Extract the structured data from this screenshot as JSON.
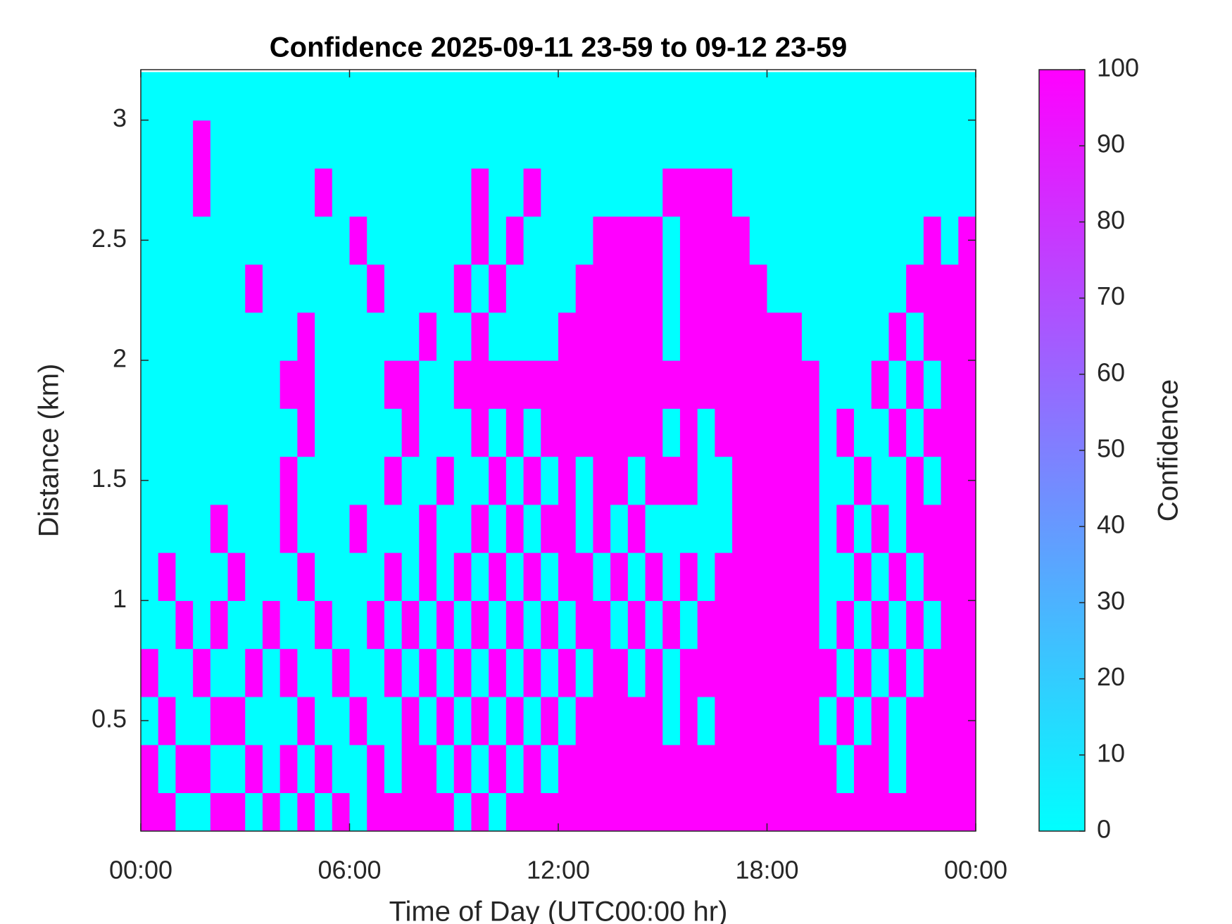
{
  "chart_data": {
    "type": "heatmap",
    "title": "Confidence 2025-09-11 23-59 to 09-12 23-59",
    "xlabel": "Time of Day (UTC00:00 hr)",
    "ylabel": "Distance (km)",
    "colorbar_label": "Confidence",
    "x": [
      0.25,
      0.75,
      1.25,
      1.75,
      2.25,
      2.75,
      3.25,
      3.75,
      4.25,
      4.75,
      5.25,
      5.75,
      6.25,
      6.75,
      7.25,
      7.75,
      8.25,
      8.75,
      9.25,
      9.75,
      10.25,
      10.75,
      11.25,
      11.75,
      12.25,
      12.75,
      13.25,
      13.75,
      14.25,
      14.75,
      15.25,
      15.75,
      16.25,
      16.75,
      17.25,
      17.75,
      18.25,
      18.75,
      19.25,
      19.75,
      20.25,
      20.75,
      21.25,
      21.75,
      22.25,
      22.75,
      23.25,
      23.75
    ],
    "y": [
      0.1,
      0.3,
      0.5,
      0.7,
      0.9,
      1.1,
      1.3,
      1.5,
      1.7,
      1.9,
      2.1,
      2.3,
      2.5,
      2.7,
      2.9,
      3.1
    ],
    "z": [
      [
        100,
        100,
        0,
        0,
        100,
        100,
        0,
        100,
        0,
        100,
        0,
        100,
        0,
        100,
        100,
        100,
        100,
        100,
        0,
        100,
        0,
        100,
        100,
        100,
        100,
        100,
        100,
        100,
        100,
        100,
        100,
        100,
        100,
        100,
        100,
        100,
        100,
        100,
        100,
        100,
        100,
        100,
        100,
        100,
        100,
        100,
        100,
        100
      ],
      [
        100,
        0,
        100,
        100,
        0,
        0,
        100,
        0,
        100,
        0,
        100,
        0,
        0,
        100,
        0,
        100,
        100,
        0,
        100,
        0,
        100,
        0,
        100,
        0,
        100,
        100,
        100,
        100,
        100,
        100,
        100,
        100,
        100,
        100,
        100,
        100,
        100,
        100,
        100,
        100,
        0,
        100,
        100,
        0,
        100,
        100,
        100,
        100
      ],
      [
        0,
        100,
        0,
        0,
        100,
        100,
        0,
        0,
        0,
        100,
        0,
        0,
        100,
        0,
        0,
        100,
        0,
        100,
        0,
        100,
        0,
        100,
        0,
        100,
        0,
        100,
        100,
        100,
        100,
        100,
        0,
        100,
        0,
        100,
        100,
        100,
        100,
        100,
        100,
        0,
        100,
        0,
        100,
        0,
        100,
        100,
        100,
        100
      ],
      [
        100,
        0,
        0,
        100,
        0,
        0,
        100,
        0,
        100,
        0,
        0,
        100,
        0,
        0,
        100,
        0,
        100,
        0,
        100,
        0,
        100,
        0,
        100,
        0,
        100,
        0,
        100,
        100,
        0,
        100,
        0,
        100,
        100,
        100,
        100,
        100,
        100,
        100,
        100,
        100,
        0,
        100,
        0,
        100,
        0,
        100,
        100,
        100
      ],
      [
        0,
        0,
        100,
        0,
        100,
        0,
        0,
        100,
        0,
        0,
        100,
        0,
        0,
        100,
        0,
        100,
        0,
        100,
        0,
        100,
        0,
        100,
        0,
        100,
        0,
        100,
        100,
        0,
        100,
        0,
        100,
        0,
        100,
        100,
        100,
        100,
        100,
        100,
        100,
        0,
        100,
        0,
        100,
        0,
        100,
        0,
        100,
        100
      ],
      [
        0,
        100,
        0,
        0,
        0,
        100,
        0,
        0,
        0,
        100,
        0,
        0,
        0,
        0,
        100,
        0,
        100,
        0,
        100,
        0,
        100,
        0,
        100,
        0,
        100,
        100,
        0,
        100,
        0,
        100,
        0,
        100,
        0,
        100,
        100,
        100,
        100,
        100,
        100,
        0,
        0,
        100,
        0,
        100,
        0,
        100,
        100,
        100
      ],
      [
        0,
        0,
        0,
        0,
        100,
        0,
        0,
        0,
        100,
        0,
        0,
        0,
        100,
        0,
        0,
        0,
        100,
        0,
        0,
        100,
        0,
        100,
        0,
        100,
        100,
        0,
        100,
        0,
        100,
        0,
        0,
        0,
        0,
        0,
        100,
        100,
        100,
        100,
        100,
        0,
        100,
        0,
        100,
        0,
        100,
        100,
        100,
        100
      ],
      [
        0,
        0,
        0,
        0,
        0,
        0,
        0,
        0,
        100,
        0,
        0,
        0,
        0,
        0,
        100,
        0,
        0,
        100,
        0,
        0,
        100,
        0,
        100,
        0,
        100,
        0,
        100,
        100,
        0,
        100,
        100,
        100,
        0,
        0,
        100,
        100,
        100,
        100,
        100,
        0,
        0,
        100,
        0,
        0,
        100,
        0,
        100,
        100
      ],
      [
        0,
        0,
        0,
        0,
        0,
        0,
        0,
        0,
        0,
        100,
        0,
        0,
        0,
        0,
        0,
        100,
        0,
        0,
        0,
        100,
        0,
        100,
        0,
        100,
        100,
        100,
        100,
        100,
        100,
        100,
        0,
        100,
        0,
        100,
        100,
        100,
        100,
        100,
        100,
        0,
        100,
        0,
        0,
        100,
        0,
        100,
        100,
        100
      ],
      [
        0,
        0,
        0,
        0,
        0,
        0,
        0,
        0,
        100,
        100,
        0,
        0,
        0,
        0,
        100,
        100,
        0,
        0,
        100,
        100,
        100,
        100,
        100,
        100,
        100,
        100,
        100,
        100,
        100,
        100,
        100,
        100,
        100,
        100,
        100,
        100,
        100,
        100,
        100,
        0,
        0,
        0,
        100,
        0,
        100,
        0,
        100,
        100
      ],
      [
        0,
        0,
        0,
        0,
        0,
        0,
        0,
        0,
        0,
        100,
        0,
        0,
        0,
        0,
        0,
        0,
        100,
        0,
        0,
        100,
        0,
        0,
        0,
        0,
        100,
        100,
        100,
        100,
        100,
        100,
        0,
        100,
        100,
        100,
        100,
        100,
        100,
        100,
        0,
        0,
        0,
        0,
        0,
        100,
        0,
        100,
        100,
        100
      ],
      [
        0,
        0,
        0,
        0,
        0,
        0,
        100,
        0,
        0,
        0,
        0,
        0,
        0,
        100,
        0,
        0,
        0,
        0,
        100,
        0,
        100,
        0,
        0,
        0,
        0,
        100,
        100,
        100,
        100,
        100,
        0,
        100,
        100,
        100,
        100,
        100,
        0,
        0,
        0,
        0,
        0,
        0,
        0,
        0,
        100,
        100,
        100,
        100
      ],
      [
        0,
        0,
        0,
        0,
        0,
        0,
        0,
        0,
        0,
        0,
        0,
        0,
        100,
        0,
        0,
        0,
        0,
        0,
        0,
        100,
        0,
        100,
        0,
        0,
        0,
        0,
        100,
        100,
        100,
        100,
        0,
        100,
        100,
        100,
        100,
        0,
        0,
        0,
        0,
        0,
        0,
        0,
        0,
        0,
        0,
        100,
        0,
        100
      ],
      [
        0,
        0,
        0,
        100,
        0,
        0,
        0,
        0,
        0,
        0,
        100,
        0,
        0,
        0,
        0,
        0,
        0,
        0,
        0,
        100,
        0,
        0,
        100,
        0,
        0,
        0,
        0,
        0,
        0,
        0,
        100,
        100,
        100,
        100,
        0,
        0,
        0,
        0,
        0,
        0,
        0,
        0,
        0,
        0,
        0,
        0,
        0,
        0
      ],
      [
        0,
        0,
        0,
        100,
        0,
        0,
        0,
        0,
        0,
        0,
        0,
        0,
        0,
        0,
        0,
        0,
        0,
        0,
        0,
        0,
        0,
        0,
        0,
        0,
        0,
        0,
        0,
        0,
        0,
        0,
        0,
        0,
        0,
        0,
        0,
        0,
        0,
        0,
        0,
        0,
        0,
        0,
        0,
        0,
        0,
        0,
        0,
        0
      ],
      [
        0,
        0,
        0,
        0,
        0,
        0,
        0,
        0,
        0,
        0,
        0,
        0,
        0,
        0,
        0,
        0,
        0,
        0,
        0,
        0,
        0,
        0,
        0,
        0,
        0,
        0,
        0,
        0,
        0,
        0,
        0,
        0,
        0,
        0,
        0,
        0,
        0,
        0,
        0,
        0,
        0,
        0,
        0,
        0,
        0,
        0,
        0,
        0
      ]
    ],
    "xlim": [
      0,
      24
    ],
    "xticks": [
      {
        "value": 0,
        "label": "00:00"
      },
      {
        "value": 6,
        "label": "06:00"
      },
      {
        "value": 12,
        "label": "12:00"
      },
      {
        "value": 18,
        "label": "18:00"
      },
      {
        "value": 24,
        "label": "00:00"
      }
    ],
    "ylim": [
      0.04,
      3.21
    ],
    "yticks": [
      0.5,
      1,
      1.5,
      2,
      2.5,
      3
    ],
    "clim": [
      0,
      100
    ],
    "cticks": [
      0,
      10,
      20,
      30,
      40,
      50,
      60,
      70,
      80,
      90,
      100
    ],
    "colormap": [
      "#00ffff",
      "#ff00ff"
    ]
  }
}
